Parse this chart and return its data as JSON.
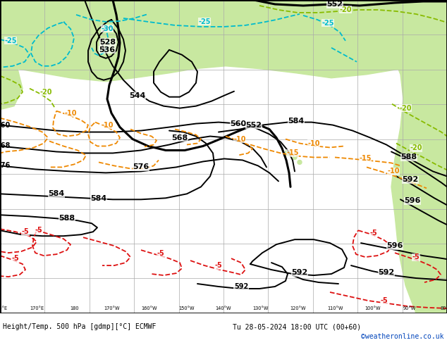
{
  "bg_sea": "#d0d0d0",
  "bg_land": "#c8e8a0",
  "grid_color": "#aaaaaa",
  "c_black": "#000000",
  "c_cyan": "#00bbcc",
  "c_teal": "#00bb88",
  "c_ygreen": "#88bb00",
  "c_orange": "#ee8800",
  "c_red": "#dd1111",
  "c_copy": "#0044bb",
  "footer_txt": "Height/Temp. 500 hPa [gdmp][°C] ECMWF",
  "footer_dt": "Tu 28-05-2024 18:00 UTC (00+60)",
  "copyright": "©weatheronline.co.uk",
  "fig_w": 6.34,
  "fig_h": 4.9,
  "dpi": 100
}
